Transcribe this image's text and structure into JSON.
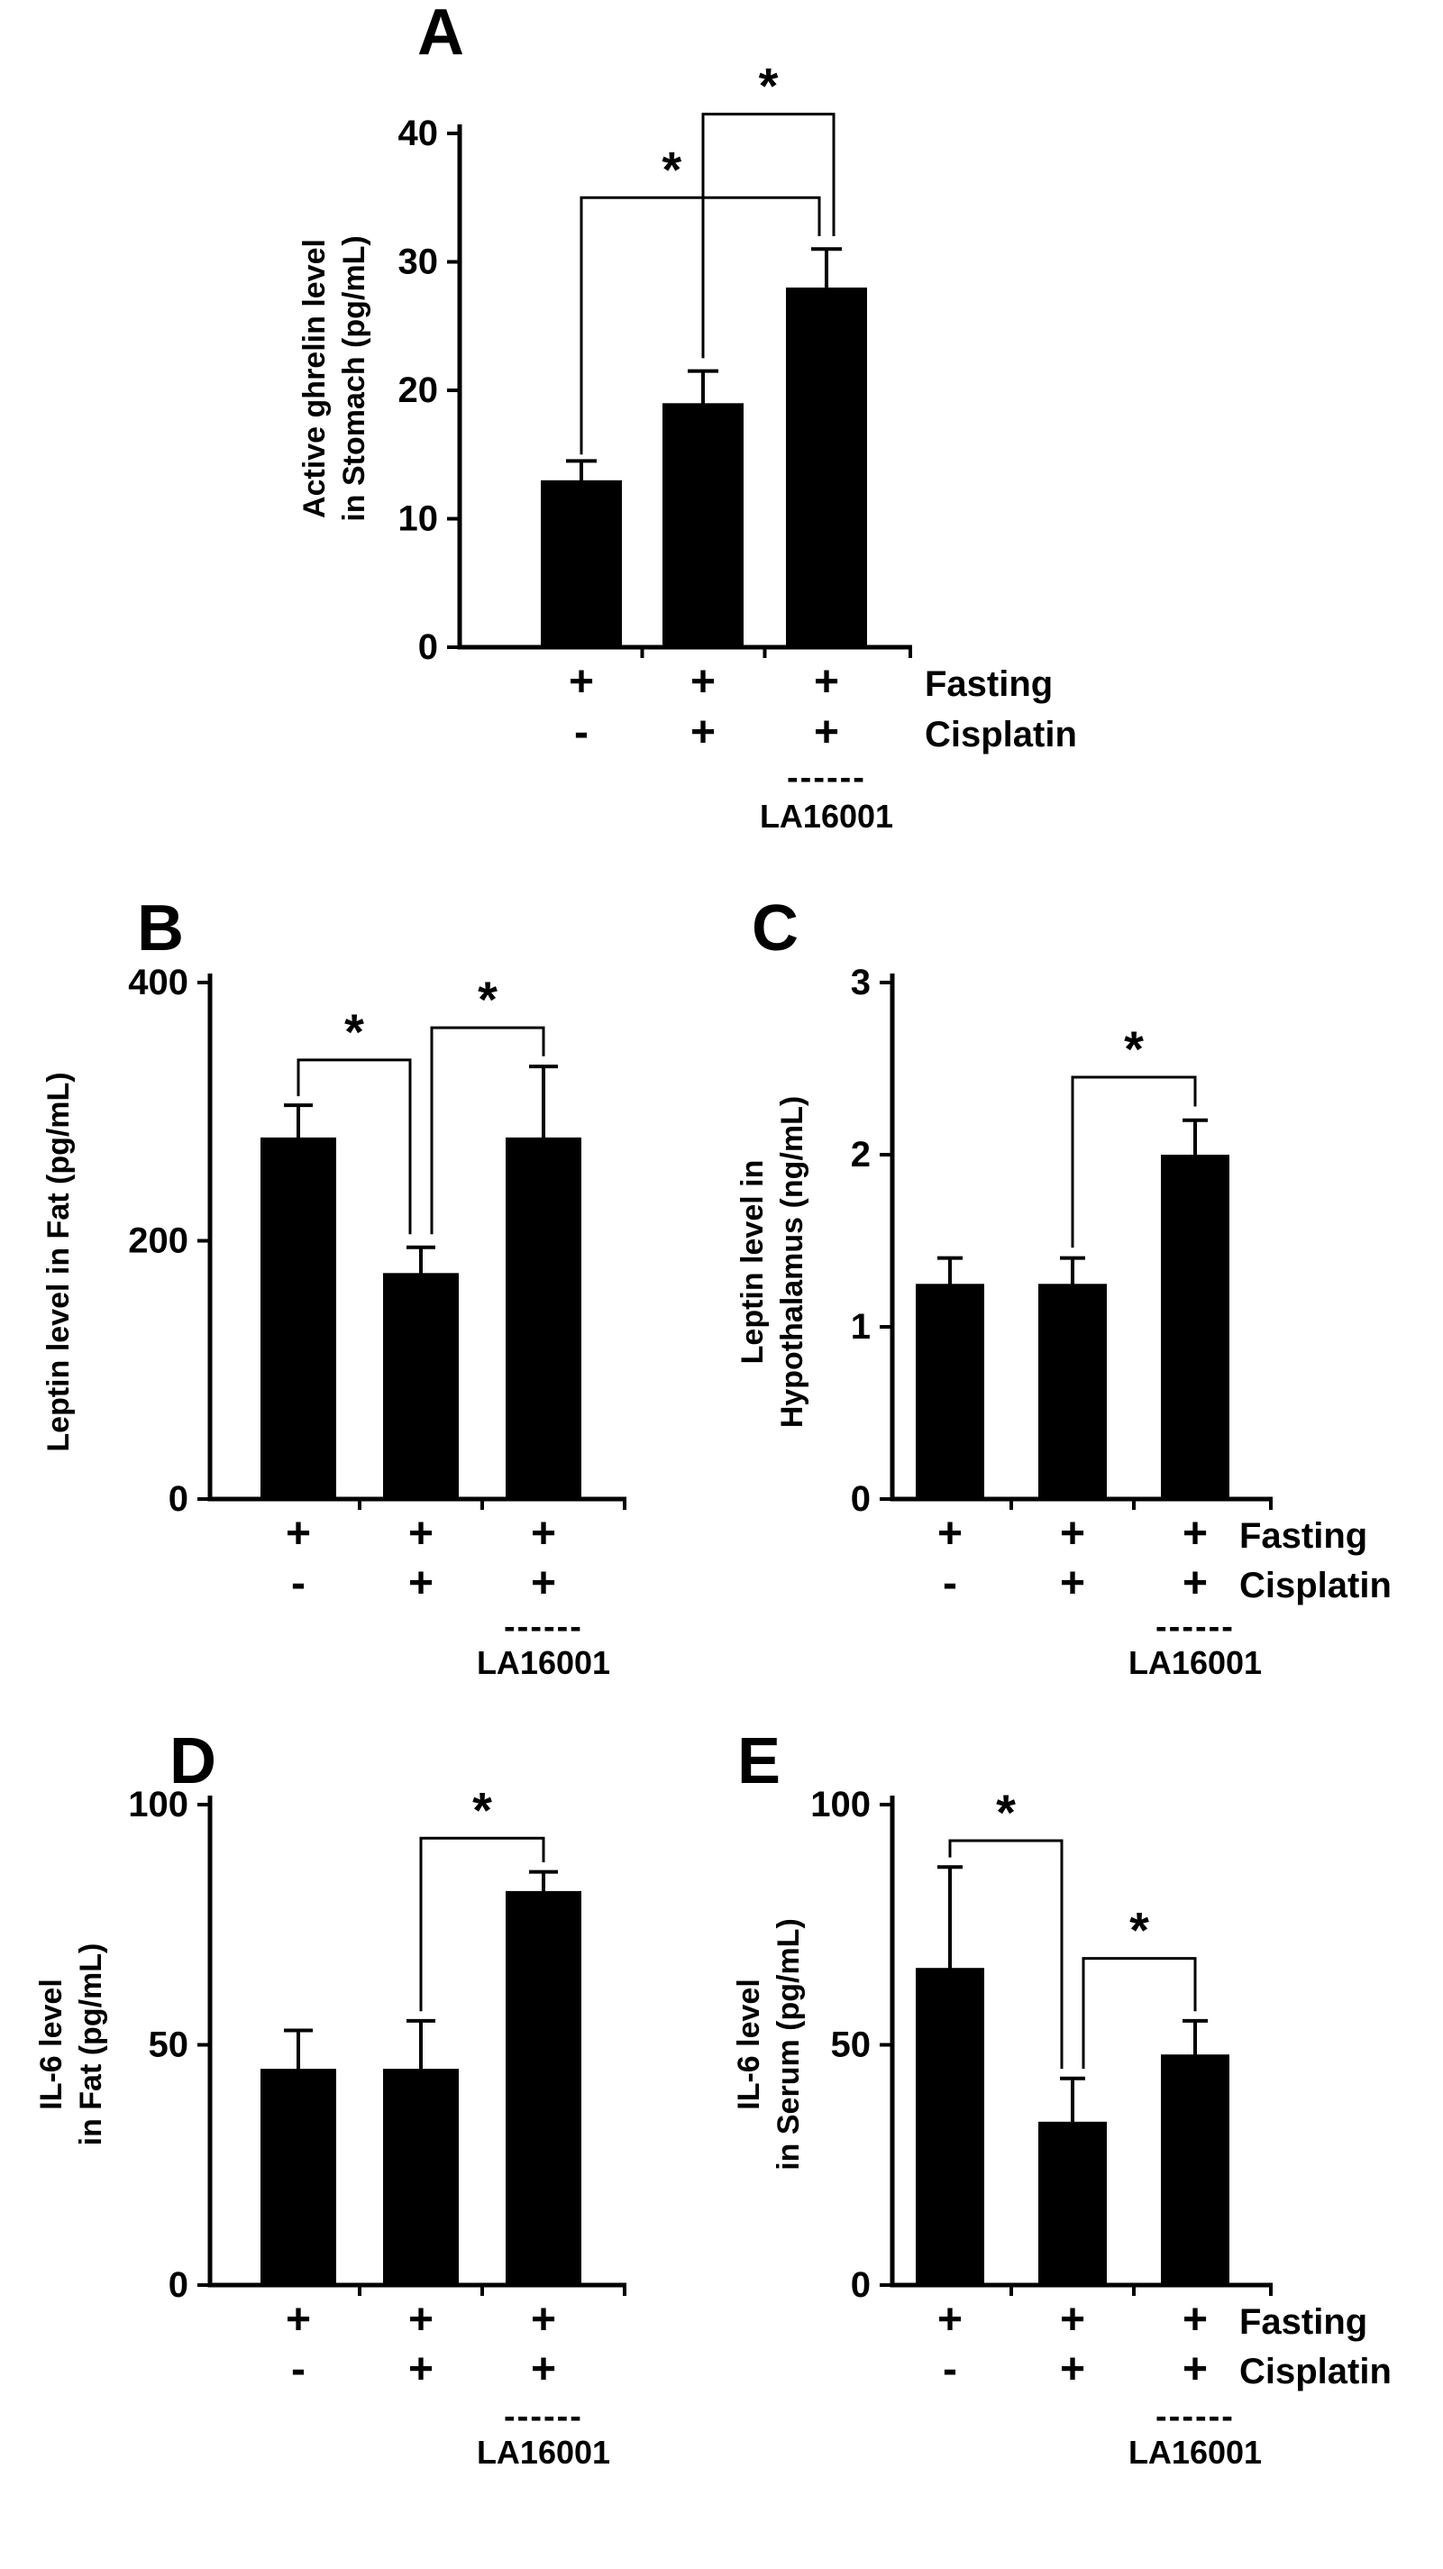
{
  "figure": {
    "background_color": "#ffffff",
    "bar_color": "#000000",
    "axis_color": "#000000",
    "treatment_row_labels": [
      "Fasting",
      "Cisplatin"
    ],
    "group_label": "LA16001",
    "group_dashes": "------",
    "significance_symbol": "*"
  },
  "chart_data": [
    {
      "id": "A",
      "type": "bar",
      "panel_label": "A",
      "ylabel_lines": [
        "Active ghrelin level",
        "in Stomach (pg/mL)"
      ],
      "ylabel": "Active ghrelin level in Stomach (pg/mL)",
      "ylim": [
        0,
        40
      ],
      "yticks": [
        0,
        10,
        20,
        30,
        40
      ],
      "categories": [
        "Fasting",
        "Fasting + Cisplatin",
        "Fasting + Cisplatin + LA16001"
      ],
      "values": [
        13,
        19,
        28
      ],
      "errors": [
        1.5,
        2.5,
        3
      ],
      "sign_rows": [
        [
          "+",
          "+",
          "+"
        ],
        [
          "-",
          "+",
          "+"
        ]
      ],
      "show_row_labels": true,
      "la16001_bar_index": 2,
      "significance": [
        {
          "from": 1,
          "to": 2,
          "label": "*",
          "line": 41.5,
          "left_end": 22.5,
          "right_end": 32
        },
        {
          "from": 0,
          "to": 2,
          "label": "*",
          "line": 35,
          "left_end": 15,
          "right_end": 32
        }
      ]
    },
    {
      "id": "B",
      "type": "bar",
      "panel_label": "B",
      "ylabel_lines": [
        "Leptin level in Fat (pg/mL)"
      ],
      "ylabel": "Leptin level in Fat (pg/mL)",
      "ylim": [
        0,
        400
      ],
      "yticks": [
        0,
        200,
        400
      ],
      "categories": [
        "Fasting",
        "Fasting + Cisplatin",
        "Fasting + Cisplatin + LA16001"
      ],
      "values": [
        280,
        175,
        280
      ],
      "errors": [
        25,
        20,
        55
      ],
      "sign_rows": [
        [
          "+",
          "+",
          "+"
        ],
        [
          "-",
          "+",
          "+"
        ]
      ],
      "show_row_labels": false,
      "la16001_bar_index": 2,
      "significance": [
        {
          "from": 0,
          "to": 1,
          "label": "*",
          "line": 340,
          "left_end": 312,
          "right_end": 205
        },
        {
          "from": 1,
          "to": 2,
          "label": "*",
          "line": 365,
          "left_end": 205,
          "right_end": 343
        }
      ]
    },
    {
      "id": "C",
      "type": "bar",
      "panel_label": "C",
      "ylabel_lines": [
        "Leptin level in",
        "Hypothalamus (ng/mL)"
      ],
      "ylabel": "Leptin level in Hypothalamus (ng/mL)",
      "ylim": [
        0,
        3
      ],
      "yticks": [
        0,
        1,
        2,
        3
      ],
      "categories": [
        "Fasting",
        "Fasting + Cisplatin",
        "Fasting + Cisplatin + LA16001"
      ],
      "values": [
        1.25,
        1.25,
        2
      ],
      "errors": [
        0.15,
        0.15,
        0.2
      ],
      "sign_rows": [
        [
          "+",
          "+",
          "+"
        ],
        [
          "-",
          "+",
          "+"
        ]
      ],
      "show_row_labels": true,
      "la16001_bar_index": 2,
      "significance": [
        {
          "from": 1,
          "to": 2,
          "label": "*",
          "line": 2.45,
          "left_end": 1.46,
          "right_end": 2.28
        }
      ]
    },
    {
      "id": "D",
      "type": "bar",
      "panel_label": "D",
      "ylabel_lines": [
        "IL-6 level",
        "in Fat (pg/mL)"
      ],
      "ylabel": "IL-6 level in Fat (pg/mL)",
      "ylim": [
        0,
        100
      ],
      "yticks": [
        0,
        50,
        100
      ],
      "categories": [
        "Fasting",
        "Fasting + Cisplatin",
        "Fasting + Cisplatin + LA16001"
      ],
      "values": [
        45,
        45,
        82
      ],
      "errors": [
        8,
        10,
        4
      ],
      "sign_rows": [
        [
          "+",
          "+",
          "+"
        ],
        [
          "-",
          "+",
          "+"
        ]
      ],
      "show_row_labels": false,
      "la16001_bar_index": 2,
      "significance": [
        {
          "from": 1,
          "to": 2,
          "label": "*",
          "line": 93,
          "left_end": 57,
          "right_end": 88
        }
      ]
    },
    {
      "id": "E",
      "type": "bar",
      "panel_label": "E",
      "ylabel_lines": [
        "IL-6 level",
        "in Serum (pg/mL)"
      ],
      "ylabel": "IL-6 level in Serum (pg/mL)",
      "ylim": [
        0,
        100
      ],
      "yticks": [
        0,
        50,
        100
      ],
      "categories": [
        "Fasting",
        "Fasting + Cisplatin",
        "Fasting + Cisplatin + LA16001"
      ],
      "values": [
        66,
        34,
        48
      ],
      "errors": [
        21,
        9,
        7
      ],
      "sign_rows": [
        [
          "+",
          "+",
          "+"
        ],
        [
          "-",
          "+",
          "+"
        ]
      ],
      "show_row_labels": true,
      "la16001_bar_index": 2,
      "significance": [
        {
          "from": 0,
          "to": 1,
          "label": "*",
          "line": 92.5,
          "left_end": 89,
          "right_end": 45
        },
        {
          "from": 1,
          "to": 2,
          "label": "*",
          "line": 68,
          "left_end": 45,
          "right_end": 57
        }
      ]
    }
  ]
}
